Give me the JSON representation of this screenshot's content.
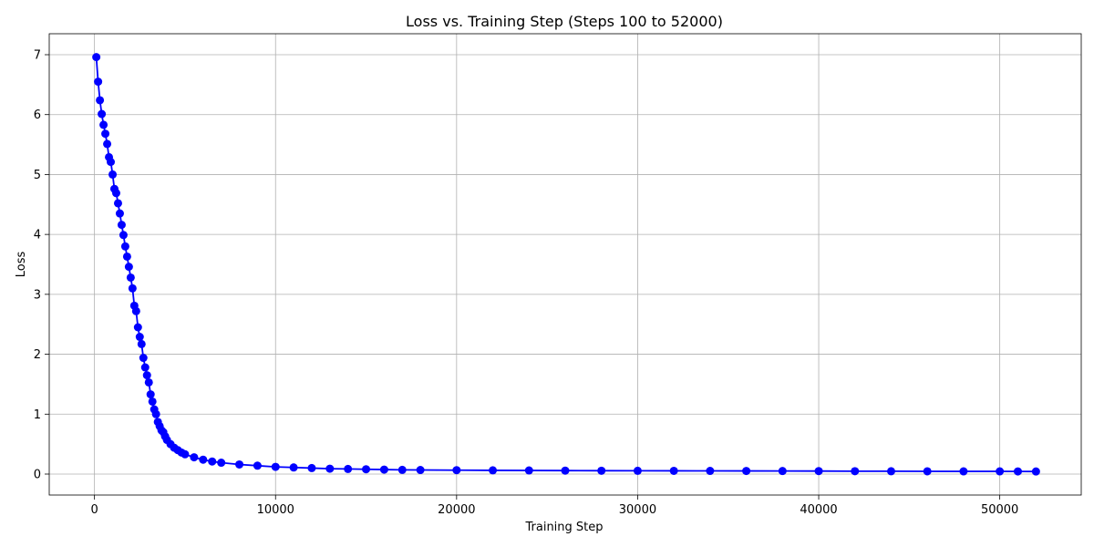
{
  "chart_data": {
    "type": "line",
    "title": "Loss vs. Training Step (Steps 100 to 52000)",
    "xlabel": "Training Step",
    "ylabel": "Loss",
    "xlim": [
      -2500,
      54500
    ],
    "ylim": [
      -0.35,
      7.35
    ],
    "xticks": [
      0,
      10000,
      20000,
      30000,
      40000,
      50000
    ],
    "yticks": [
      0,
      1,
      2,
      3,
      4,
      5,
      6,
      7
    ],
    "grid": true,
    "legend": "none",
    "series_color": "#0000ff",
    "marker": "circle",
    "series": [
      {
        "x": [
          100,
          200,
          300,
          400,
          500,
          600,
          700,
          800,
          900,
          1000,
          1100,
          1200,
          1300,
          1400,
          1500,
          1600,
          1700,
          1800,
          1900,
          2000,
          2100,
          2200,
          2300,
          2400,
          2500,
          2600,
          2700,
          2800,
          2900,
          3000,
          3100,
          3200,
          3300,
          3400,
          3500,
          3600,
          3700,
          3800,
          3900,
          4000,
          4200,
          4400,
          4600,
          4800,
          5000,
          5500,
          6000,
          6500,
          7000,
          8000,
          9000,
          10000,
          11000,
          12000,
          13000,
          14000,
          15000,
          16000,
          17000,
          18000,
          20000,
          22000,
          24000,
          26000,
          28000,
          30000,
          32000,
          34000,
          36000,
          38000,
          40000,
          42000,
          44000,
          46000,
          48000,
          50000,
          51000,
          52000
        ],
        "y": [
          6.96,
          6.55,
          6.24,
          6.01,
          5.83,
          5.68,
          5.51,
          5.29,
          5.21,
          5.0,
          4.76,
          4.69,
          4.52,
          4.35,
          4.16,
          3.99,
          3.8,
          3.63,
          3.46,
          3.28,
          3.1,
          2.81,
          2.72,
          2.45,
          2.29,
          2.17,
          1.94,
          1.78,
          1.65,
          1.53,
          1.33,
          1.21,
          1.08,
          1.0,
          0.87,
          0.8,
          0.73,
          0.7,
          0.63,
          0.57,
          0.5,
          0.44,
          0.4,
          0.36,
          0.33,
          0.28,
          0.24,
          0.21,
          0.19,
          0.16,
          0.14,
          0.12,
          0.11,
          0.1,
          0.09,
          0.085,
          0.08,
          0.075,
          0.07,
          0.068,
          0.065,
          0.062,
          0.06,
          0.058,
          0.056,
          0.055,
          0.054,
          0.053,
          0.052,
          0.051,
          0.05,
          0.048,
          0.047,
          0.046,
          0.045,
          0.045,
          0.044,
          0.043
        ]
      }
    ]
  }
}
